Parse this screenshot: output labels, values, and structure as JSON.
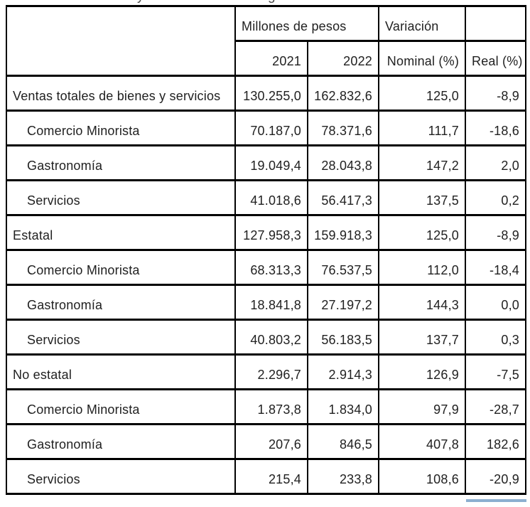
{
  "page": {
    "background": "#ffffff"
  },
  "cropped_title": {
    "visible_descender_left": "y",
    "visible_descender_right": "g"
  },
  "colors": {
    "border": "#000000",
    "text": "#212121",
    "bottom_accent": "#8cafd0"
  },
  "table": {
    "header": {
      "group_millones": "Millones de pesos",
      "group_variacion": "Variación",
      "col_2021": "2021",
      "col_2022": "2022",
      "col_nominal": "Nominal (%)",
      "col_real": "Real (%)"
    },
    "rows": [
      {
        "label": "Ventas totales de bienes y servicios",
        "indent": false,
        "v2021": "130.255,0",
        "v2022": "162.832,6",
        "nominal": "125,0",
        "real": "-8,9"
      },
      {
        "label": "Comercio Minorista",
        "indent": true,
        "v2021": "70.187,0",
        "v2022": "78.371,6",
        "nominal": "111,7",
        "real": "-18,6"
      },
      {
        "label": "Gastronomía",
        "indent": true,
        "v2021": "19.049,4",
        "v2022": "28.043,8",
        "nominal": "147,2",
        "real": "2,0"
      },
      {
        "label": "Servicios",
        "indent": true,
        "v2021": "41.018,6",
        "v2022": "56.417,3",
        "nominal": "137,5",
        "real": "0,2"
      },
      {
        "label": "Estatal",
        "indent": false,
        "v2021": "127.958,3",
        "v2022": "159.918,3",
        "nominal": "125,0",
        "real": "-8,9"
      },
      {
        "label": "Comercio Minorista",
        "indent": true,
        "v2021": "68.313,3",
        "v2022": "76.537,5",
        "nominal": "112,0",
        "real": "-18,4"
      },
      {
        "label": "Gastronomía",
        "indent": true,
        "v2021": "18.841,8",
        "v2022": "27.197,2",
        "nominal": "144,3",
        "real": "0,0"
      },
      {
        "label": "Servicios",
        "indent": true,
        "v2021": "40.803,2",
        "v2022": "56.183,5",
        "nominal": "137,7",
        "real": "0,3"
      },
      {
        "label": "No estatal",
        "indent": false,
        "v2021": "2.296,7",
        "v2022": "2.914,3",
        "nominal": "126,9",
        "real": "-7,5"
      },
      {
        "label": "Comercio Minorista",
        "indent": true,
        "v2021": "1.873,8",
        "v2022": "1.834,0",
        "nominal": "97,9",
        "real": "-28,7"
      },
      {
        "label": "Gastronomía",
        "indent": true,
        "v2021": "207,6",
        "v2022": "846,5",
        "nominal": "407,8",
        "real": "182,6"
      },
      {
        "label": "Servicios",
        "indent": true,
        "v2021": "215,4",
        "v2022": "233,8",
        "nominal": "108,6",
        "real": "-20,9"
      }
    ]
  }
}
